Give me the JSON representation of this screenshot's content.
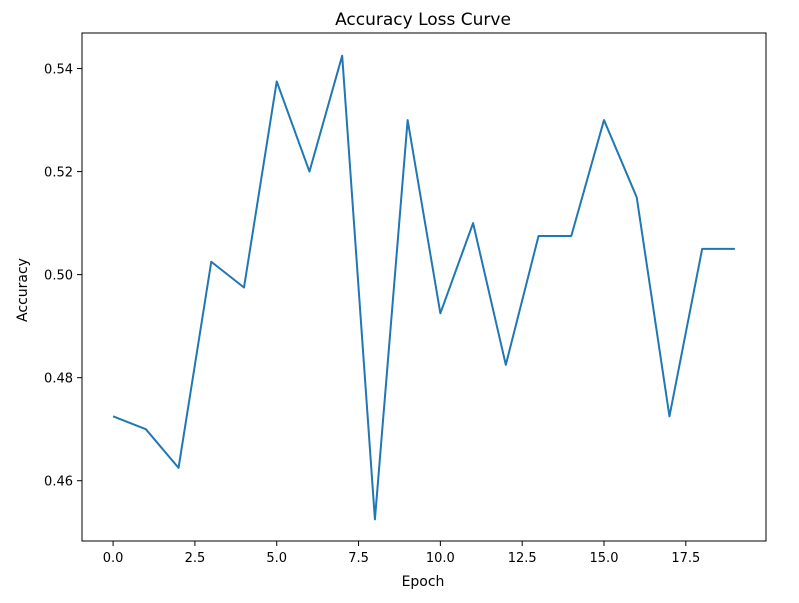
{
  "chart_data": {
    "type": "line",
    "title": "Accuracy Loss Curve",
    "xlabel": "Epoch",
    "ylabel": "Accuracy",
    "xlim": [
      -0.95,
      19.95
    ],
    "ylim": [
      0.4483,
      0.5469
    ],
    "xticks": [
      0.0,
      2.5,
      5.0,
      7.5,
      10.0,
      12.5,
      15.0,
      17.5
    ],
    "xtick_labels": [
      "0.0",
      "2.5",
      "5.0",
      "7.5",
      "10.0",
      "12.5",
      "15.0",
      "17.5"
    ],
    "yticks": [
      0.46,
      0.48,
      0.5,
      0.52,
      0.54
    ],
    "ytick_labels": [
      "0.46",
      "0.48",
      "0.50",
      "0.52",
      "0.54"
    ],
    "grid": false,
    "legend": "none",
    "series": [
      {
        "color": "#1f77b4",
        "x": [
          0,
          1,
          2,
          3,
          4,
          5,
          6,
          7,
          8,
          9,
          10,
          11,
          12,
          13,
          14,
          15,
          16,
          17,
          18,
          19
        ],
        "values": [
          0.4725,
          0.47,
          0.4625,
          0.5025,
          0.4975,
          0.5375,
          0.52,
          0.5425,
          0.4525,
          0.53,
          0.4925,
          0.51,
          0.4825,
          0.5075,
          0.5075,
          0.53,
          0.515,
          0.4725,
          0.505,
          0.505
        ]
      }
    ]
  }
}
